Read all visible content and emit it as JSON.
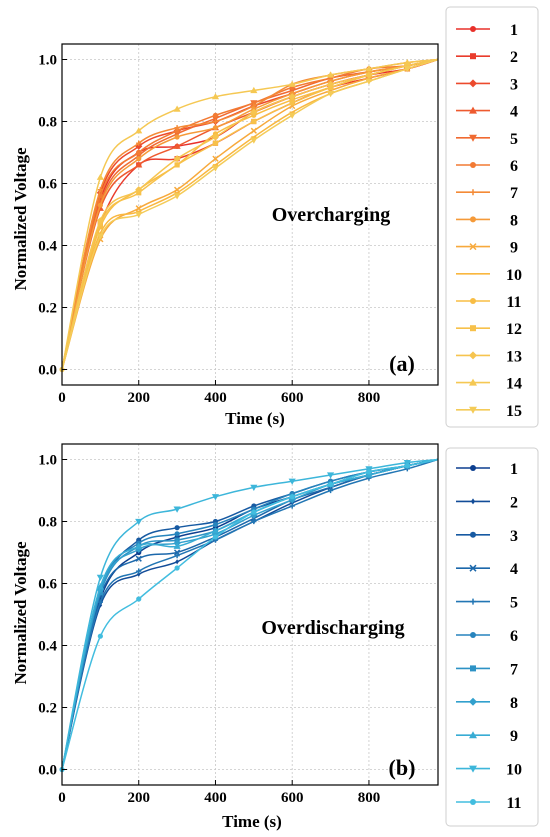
{
  "chart_data": [
    {
      "type": "line",
      "panel_label": "(a)",
      "annotation": "Overcharging",
      "xlabel": "Time (s)",
      "ylabel": "Normalized Voltage",
      "xlim": [
        0,
        980
      ],
      "ylim": [
        -0.05,
        1.05
      ],
      "xticks": [
        0,
        200,
        400,
        600,
        800
      ],
      "yticks": [
        0.0,
        0.2,
        0.4,
        0.6,
        0.8,
        1.0
      ],
      "xtick_labels": [
        "0",
        "200",
        "400",
        "600",
        "800"
      ],
      "ytick_labels": [
        "0.0",
        "0.2",
        "0.4",
        "0.6",
        "0.8",
        "1.0"
      ],
      "grid": true,
      "legend_position": "right",
      "x": [
        0,
        100,
        200,
        300,
        400,
        500,
        600,
        700,
        800,
        900,
        980
      ],
      "series": [
        {
          "name": "1",
          "color": "#e8302a",
          "marker": "circle",
          "values": [
            0.0,
            0.55,
            0.7,
            0.72,
            0.75,
            0.83,
            0.88,
            0.92,
            0.95,
            0.97,
            1.0
          ]
        },
        {
          "name": "2",
          "color": "#e93c2c",
          "marker": "square",
          "values": [
            0.0,
            0.47,
            0.66,
            0.68,
            0.73,
            0.8,
            0.86,
            0.91,
            0.94,
            0.97,
            1.0
          ]
        },
        {
          "name": "3",
          "color": "#ec4a2d",
          "marker": "diamond",
          "values": [
            0.0,
            0.57,
            0.72,
            0.77,
            0.8,
            0.85,
            0.89,
            0.93,
            0.96,
            0.98,
            1.0
          ]
        },
        {
          "name": "4",
          "color": "#ee5a2f",
          "marker": "triangle-up",
          "values": [
            0.0,
            0.52,
            0.66,
            0.72,
            0.78,
            0.83,
            0.88,
            0.92,
            0.95,
            0.98,
            1.0
          ]
        },
        {
          "name": "5",
          "color": "#f06a31",
          "marker": "triangle-down",
          "values": [
            0.0,
            0.54,
            0.69,
            0.76,
            0.81,
            0.86,
            0.9,
            0.94,
            0.96,
            0.98,
            1.0
          ]
        },
        {
          "name": "6",
          "color": "#f27a33",
          "marker": "circle",
          "values": [
            0.0,
            0.56,
            0.7,
            0.77,
            0.82,
            0.86,
            0.91,
            0.94,
            0.97,
            0.98,
            1.0
          ]
        },
        {
          "name": "7",
          "color": "#f48a36",
          "marker": "plus",
          "values": [
            0.0,
            0.58,
            0.73,
            0.78,
            0.8,
            0.85,
            0.92,
            0.95,
            0.97,
            0.99,
            1.0
          ]
        },
        {
          "name": "8",
          "color": "#f59a39",
          "marker": "circle",
          "values": [
            0.0,
            0.53,
            0.68,
            0.75,
            0.78,
            0.84,
            0.89,
            0.93,
            0.96,
            0.98,
            1.0
          ]
        },
        {
          "name": "9",
          "color": "#f7a93c",
          "marker": "x",
          "values": [
            0.0,
            0.42,
            0.52,
            0.58,
            0.68,
            0.77,
            0.85,
            0.9,
            0.94,
            0.97,
            1.0
          ]
        },
        {
          "name": "10",
          "color": "#f9b73f",
          "marker": "line",
          "values": [
            0.0,
            0.44,
            0.51,
            0.57,
            0.66,
            0.75,
            0.83,
            0.89,
            0.93,
            0.97,
            1.0
          ]
        },
        {
          "name": "11",
          "color": "#f8bd44",
          "marker": "circle",
          "values": [
            0.0,
            0.46,
            0.58,
            0.66,
            0.76,
            0.82,
            0.87,
            0.91,
            0.95,
            0.98,
            1.0
          ]
        },
        {
          "name": "12",
          "color": "#f7c14a",
          "marker": "square",
          "values": [
            0.0,
            0.47,
            0.57,
            0.66,
            0.73,
            0.8,
            0.86,
            0.91,
            0.95,
            0.98,
            1.0
          ]
        },
        {
          "name": "13",
          "color": "#f6c44f",
          "marker": "diamond",
          "values": [
            0.0,
            0.48,
            0.58,
            0.68,
            0.75,
            0.83,
            0.88,
            0.92,
            0.95,
            0.98,
            1.0
          ]
        },
        {
          "name": "14",
          "color": "#f5c853",
          "marker": "triangle-up",
          "values": [
            0.0,
            0.62,
            0.77,
            0.84,
            0.88,
            0.9,
            0.92,
            0.95,
            0.97,
            0.99,
            1.0
          ]
        },
        {
          "name": "15",
          "color": "#f4cb58",
          "marker": "triangle-down",
          "values": [
            0.0,
            0.43,
            0.5,
            0.56,
            0.65,
            0.74,
            0.82,
            0.89,
            0.93,
            0.97,
            1.0
          ]
        }
      ]
    },
    {
      "type": "line",
      "panel_label": "(b)",
      "annotation": "Overdischarging",
      "xlabel": "Time (s)",
      "ylabel": "Normalized Voltage",
      "xlim": [
        0,
        980
      ],
      "ylim": [
        -0.05,
        1.05
      ],
      "xticks": [
        0,
        200,
        400,
        600,
        800
      ],
      "yticks": [
        0.0,
        0.2,
        0.4,
        0.6,
        0.8,
        1.0
      ],
      "xtick_labels": [
        "0",
        "200",
        "400",
        "600",
        "800"
      ],
      "ytick_labels": [
        "0.0",
        "0.2",
        "0.4",
        "0.6",
        "0.8",
        "1.0"
      ],
      "grid": true,
      "legend_position": "right",
      "x": [
        0,
        100,
        200,
        300,
        400,
        500,
        600,
        700,
        800,
        900,
        980
      ],
      "series": [
        {
          "name": "1",
          "color": "#0d3f8f",
          "marker": "circle",
          "values": [
            0.0,
            0.55,
            0.7,
            0.75,
            0.78,
            0.84,
            0.88,
            0.92,
            0.95,
            0.98,
            1.0
          ]
        },
        {
          "name": "2",
          "color": "#124c98",
          "marker": "diamond-small",
          "values": [
            0.0,
            0.53,
            0.63,
            0.67,
            0.74,
            0.8,
            0.86,
            0.91,
            0.95,
            0.98,
            1.0
          ]
        },
        {
          "name": "3",
          "color": "#175aa2",
          "marker": "circle",
          "values": [
            0.0,
            0.57,
            0.74,
            0.78,
            0.8,
            0.85,
            0.89,
            0.93,
            0.96,
            0.98,
            1.0
          ]
        },
        {
          "name": "4",
          "color": "#1c68ab",
          "marker": "x",
          "values": [
            0.0,
            0.56,
            0.68,
            0.7,
            0.75,
            0.81,
            0.87,
            0.91,
            0.95,
            0.98,
            1.0
          ]
        },
        {
          "name": "5",
          "color": "#2276b4",
          "marker": "plus",
          "values": [
            0.0,
            0.54,
            0.64,
            0.69,
            0.74,
            0.8,
            0.85,
            0.9,
            0.94,
            0.97,
            1.0
          ]
        },
        {
          "name": "6",
          "color": "#2784bd",
          "marker": "circle",
          "values": [
            0.0,
            0.58,
            0.73,
            0.76,
            0.79,
            0.84,
            0.89,
            0.93,
            0.96,
            0.98,
            1.0
          ]
        },
        {
          "name": "7",
          "color": "#2d92c5",
          "marker": "square",
          "values": [
            0.0,
            0.57,
            0.72,
            0.74,
            0.77,
            0.83,
            0.88,
            0.92,
            0.96,
            0.98,
            1.0
          ]
        },
        {
          "name": "8",
          "color": "#32a0cd",
          "marker": "diamond",
          "values": [
            0.0,
            0.58,
            0.71,
            0.73,
            0.76,
            0.82,
            0.87,
            0.92,
            0.95,
            0.98,
            1.0
          ]
        },
        {
          "name": "9",
          "color": "#38acd4",
          "marker": "triangle-up",
          "values": [
            0.0,
            0.59,
            0.72,
            0.72,
            0.77,
            0.83,
            0.88,
            0.92,
            0.95,
            0.98,
            1.0
          ]
        },
        {
          "name": "10",
          "color": "#3db6da",
          "marker": "triangle-down",
          "values": [
            0.0,
            0.62,
            0.8,
            0.84,
            0.88,
            0.91,
            0.93,
            0.95,
            0.97,
            0.99,
            1.0
          ]
        },
        {
          "name": "11",
          "color": "#42bddf",
          "marker": "circle",
          "values": [
            0.0,
            0.43,
            0.55,
            0.65,
            0.75,
            0.83,
            0.88,
            0.92,
            0.96,
            0.98,
            1.0
          ]
        }
      ]
    }
  ]
}
